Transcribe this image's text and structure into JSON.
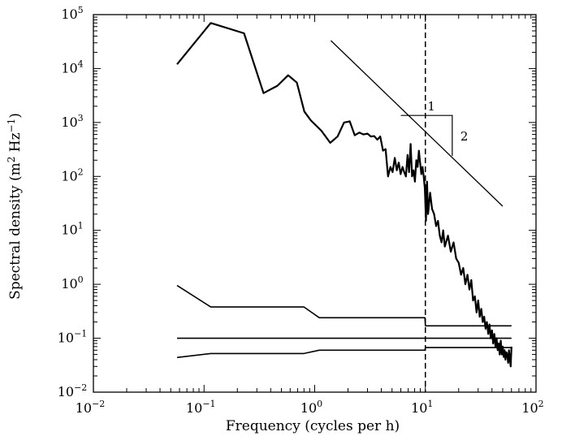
{
  "chart_data": {
    "type": "line",
    "xscale": "log",
    "yscale": "log",
    "xlim": [
      0.01,
      100
    ],
    "ylim": [
      0.01,
      100000
    ],
    "xlabel": "Frequency (cycles per h)",
    "ylabel_parts": [
      "Spectral density (m",
      "2",
      " Hz",
      "−1",
      ")"
    ],
    "x_ticks": [
      {
        "value": 0.01,
        "base": "10",
        "exp": "−2"
      },
      {
        "value": 0.1,
        "base": "10",
        "exp": "−1"
      },
      {
        "value": 1,
        "base": "10",
        "exp": "0"
      },
      {
        "value": 10,
        "base": "10",
        "exp": "1"
      },
      {
        "value": 100,
        "base": "10",
        "exp": "2"
      }
    ],
    "y_ticks": [
      {
        "value": 0.01,
        "base": "10",
        "exp": "−2"
      },
      {
        "value": 0.1,
        "base": "10",
        "exp": "−1"
      },
      {
        "value": 1,
        "base": "10",
        "exp": "0"
      },
      {
        "value": 10,
        "base": "10",
        "exp": "1"
      },
      {
        "value": 100,
        "base": "10",
        "exp": "2"
      },
      {
        "value": 1000,
        "base": "10",
        "exp": "3"
      },
      {
        "value": 10000,
        "base": "10",
        "exp": "4"
      },
      {
        "value": 100000,
        "base": "10",
        "exp": "5"
      }
    ],
    "vline": {
      "x": 10,
      "style": "dashed"
    },
    "slope_line": {
      "x": [
        1.4,
        50
      ],
      "y": [
        33000,
        28
      ]
    },
    "slope_triangle": {
      "x_start": 6,
      "x_end": 17.5,
      "y_top": 1350,
      "y_bottom": 240,
      "run_label": "1",
      "rise_label": "2"
    },
    "series": [
      {
        "style": "thick",
        "x": [
          0.057,
          0.115,
          0.23,
          0.345,
          0.46,
          0.575,
          0.69,
          0.805,
          0.92,
          1.15,
          1.38,
          1.61,
          1.84,
          2.07,
          2.3,
          2.53,
          2.76,
          3.0,
          3.22,
          3.45,
          3.68,
          3.91,
          4.14,
          4.37,
          4.6,
          4.83,
          5.06,
          5.29,
          5.52,
          5.75,
          5.98,
          6.21,
          6.44,
          6.67,
          6.9,
          7.13,
          7.36,
          7.59,
          7.82,
          8.05,
          8.28,
          8.51,
          8.74,
          8.97,
          9.2,
          9.43,
          9.66,
          9.89,
          10.12,
          10.35,
          10.58,
          11.04,
          11.5,
          12.0,
          12.5,
          13.0,
          13.5,
          14.0,
          14.5,
          15.0,
          16.0,
          17.0,
          18.0,
          19.0,
          20.0,
          21.0,
          22.0,
          23.0,
          24.0,
          25.0,
          26.0,
          27.0,
          28.0,
          29.0,
          30.0,
          31.0,
          32.0,
          33.0,
          34.0,
          35.0,
          36.0,
          37.0,
          38.0,
          39.0,
          40.0,
          41.0,
          42.0,
          43.0,
          44.0,
          45.0,
          46.0,
          47.0,
          48.0,
          49.0,
          50.0,
          51.0,
          52.0,
          53.0,
          54.0,
          55.0,
          56.0,
          57.0,
          58.0,
          59.0,
          60.0
        ],
        "y": [
          12000,
          70000,
          45000,
          3500,
          4800,
          7500,
          5500,
          1600,
          1100,
          700,
          420,
          550,
          1000,
          1050,
          580,
          650,
          600,
          620,
          550,
          560,
          480,
          550,
          300,
          320,
          100,
          150,
          120,
          220,
          130,
          180,
          110,
          150,
          120,
          100,
          250,
          120,
          400,
          100,
          130,
          80,
          200,
          150,
          300,
          180,
          110,
          150,
          100,
          60,
          15,
          80,
          20,
          50,
          25,
          20,
          12,
          15,
          8,
          6,
          10,
          5,
          8,
          4,
          6,
          3,
          2.5,
          1.5,
          2,
          1,
          1.5,
          0.8,
          1.2,
          0.5,
          0.6,
          0.3,
          0.5,
          0.25,
          0.35,
          0.2,
          0.25,
          0.15,
          0.2,
          0.12,
          0.18,
          0.1,
          0.14,
          0.08,
          0.12,
          0.07,
          0.1,
          0.06,
          0.08,
          0.05,
          0.09,
          0.05,
          0.07,
          0.045,
          0.06,
          0.04,
          0.055,
          0.05,
          0.035,
          0.06,
          0.04,
          0.03,
          0.07
        ]
      },
      {
        "style": "thin",
        "x": [
          0.057,
          0.115,
          0.8,
          1.1,
          9.9,
          10.0,
          60
        ],
        "y": [
          0.95,
          0.38,
          0.38,
          0.24,
          0.24,
          0.17,
          0.17
        ]
      },
      {
        "style": "thin",
        "x": [
          0.057,
          60
        ],
        "y": [
          0.1,
          0.1
        ]
      },
      {
        "style": "thin",
        "x": [
          0.057,
          0.115,
          0.8,
          1.1,
          9.9,
          10.0,
          60
        ],
        "y": [
          0.044,
          0.052,
          0.052,
          0.06,
          0.06,
          0.067,
          0.067
        ]
      }
    ]
  }
}
